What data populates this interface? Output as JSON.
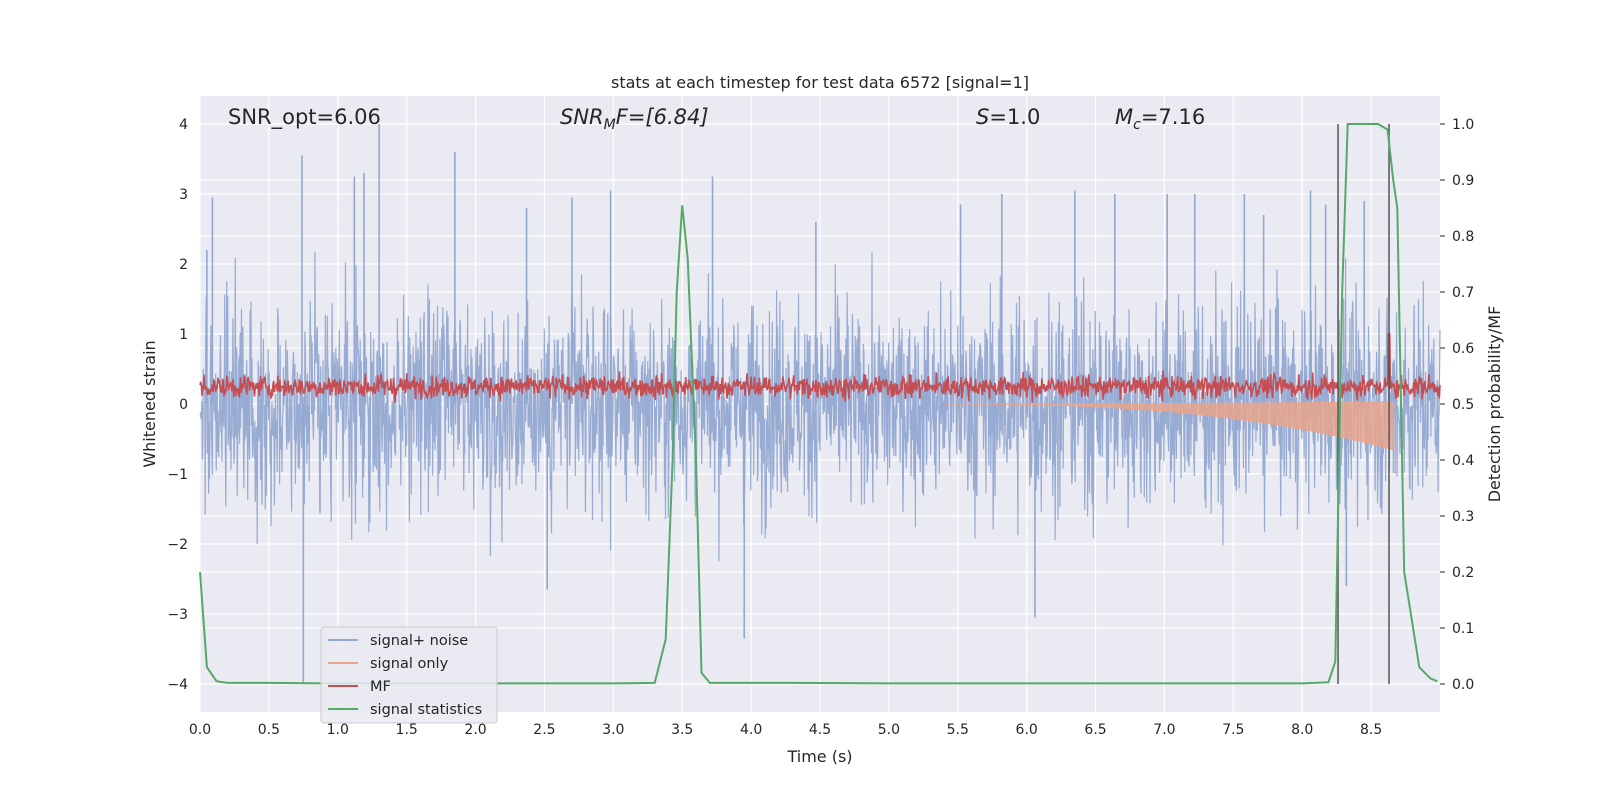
{
  "chart_data": {
    "type": "line",
    "title": "stats at each timestep for test data 6572 [signal=1]",
    "xlabel": "Time (s)",
    "ylabel": "Whitened strain",
    "ylabel_right": "Detection probability/MF",
    "xlim": [
      0,
      9
    ],
    "ylim": [
      -4.4,
      4.4
    ],
    "ylim_right": [
      -0.05,
      1.05
    ],
    "xticks": [
      "0.0",
      "0.5",
      "1.0",
      "1.5",
      "2.0",
      "2.5",
      "3.0",
      "3.5",
      "4.0",
      "4.5",
      "5.0",
      "5.5",
      "6.0",
      "6.5",
      "7.0",
      "7.5",
      "8.0",
      "8.5"
    ],
    "yticks": [
      "−4",
      "−3",
      "−2",
      "−1",
      "0",
      "1",
      "2",
      "3",
      "4"
    ],
    "yticks_right": [
      "0.0",
      "0.1",
      "0.2",
      "0.3",
      "0.4",
      "0.5",
      "0.6",
      "0.7",
      "0.8",
      "0.9",
      "1.0"
    ],
    "grid": true,
    "legend_position": "lower-left",
    "annotations": {
      "snr_opt": "SNR_opt=6.06",
      "snr_mf_base": "SNR",
      "snr_mf_sub": "M",
      "snr_mf_rest": "F=[6.84]",
      "s_sym": "S",
      "s_rest": "=1.0",
      "mc_sym": "M",
      "mc_sub": "c",
      "mc_rest": "=7.16"
    },
    "markers": [
      8.26,
      8.63
    ],
    "series": [
      {
        "name": "signal+ noise",
        "color": "#92a8d1",
        "kind": "noise",
        "description_stats": {
          "envelope_upper": 1.6,
          "envelope_lower": -1.6,
          "spike_max": 4.0,
          "spike_min": -4.0
        },
        "spikes": [
          [
            0.05,
            2.2
          ],
          [
            0.09,
            2.95
          ],
          [
            0.74,
            3.55
          ],
          [
            0.75,
            -4.0
          ],
          [
            1.12,
            3.25
          ],
          [
            1.19,
            3.3
          ],
          [
            1.3,
            4.0
          ],
          [
            1.85,
            3.6
          ],
          [
            2.37,
            2.8
          ],
          [
            2.52,
            -2.65
          ],
          [
            2.7,
            2.95
          ],
          [
            2.98,
            3.05
          ],
          [
            3.72,
            3.25
          ],
          [
            3.95,
            -3.35
          ],
          [
            4.47,
            2.6
          ],
          [
            5.52,
            2.85
          ],
          [
            5.82,
            3.0
          ],
          [
            6.06,
            -3.05
          ],
          [
            6.35,
            3.05
          ],
          [
            6.64,
            3.0
          ],
          [
            7.02,
            3.0
          ],
          [
            7.22,
            3.0
          ],
          [
            7.58,
            3.0
          ],
          [
            7.72,
            2.7
          ],
          [
            8.06,
            3.05
          ],
          [
            8.17,
            2.85
          ],
          [
            8.32,
            -2.6
          ],
          [
            8.45,
            2.9
          ]
        ]
      },
      {
        "name": "signal only",
        "color": "#e8a58c",
        "kind": "chirp",
        "start": 5.4,
        "end": 8.66,
        "min_value": -0.65
      },
      {
        "name": "MF",
        "color": "#c44e52",
        "kind": "mf",
        "baseline": 0.25,
        "spike_x": 8.63,
        "spike_value": 1.0
      },
      {
        "name": "signal statistics",
        "color": "#55a868",
        "kind": "prob",
        "axis": "right",
        "x": [
          0.0,
          0.05,
          0.12,
          0.2,
          0.5,
          0.9,
          1.2,
          1.6,
          2.0,
          2.5,
          3.0,
          3.3,
          3.38,
          3.43,
          3.46,
          3.5,
          3.54,
          3.6,
          3.64,
          3.7,
          4.0,
          4.3,
          5.0,
          6.0,
          7.0,
          8.0,
          8.19,
          8.24,
          8.29,
          8.33,
          8.45,
          8.55,
          8.62,
          8.66,
          8.69,
          8.74,
          8.85,
          8.93,
          8.98
        ],
        "y": [
          0.2,
          0.03,
          0.005,
          0.002,
          0.002,
          0.001,
          0.001,
          0.001,
          0.001,
          0.001,
          0.001,
          0.002,
          0.08,
          0.4,
          0.7,
          0.855,
          0.76,
          0.4,
          0.02,
          0.002,
          0.002,
          0.002,
          0.001,
          0.001,
          0.001,
          0.001,
          0.003,
          0.04,
          0.7,
          1.0,
          1.0,
          1.0,
          0.99,
          0.9,
          0.85,
          0.2,
          0.03,
          0.01,
          0.005
        ]
      }
    ]
  }
}
